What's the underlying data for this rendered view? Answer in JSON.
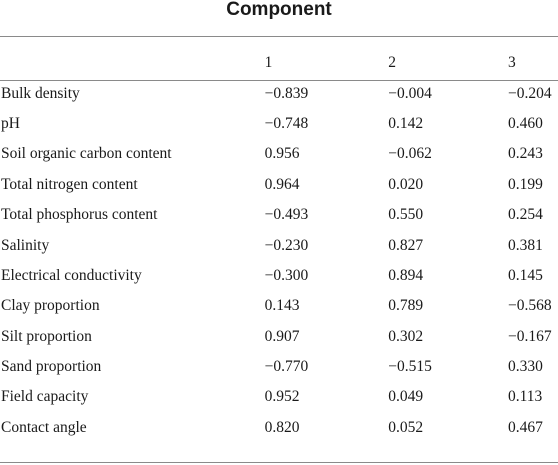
{
  "table": {
    "group_header": "Component",
    "columns": [
      "",
      "1",
      "2",
      "3"
    ],
    "rows": [
      {
        "label": "Bulk density",
        "values": [
          "−0.839",
          "−0.004",
          "−0.204"
        ]
      },
      {
        "label": "pH",
        "values": [
          "−0.748",
          "0.142",
          "0.460"
        ]
      },
      {
        "label": "Soil organic carbon content",
        "values": [
          "0.956",
          "−0.062",
          "0.243"
        ]
      },
      {
        "label": "Total nitrogen content",
        "values": [
          "0.964",
          "0.020",
          "0.199"
        ]
      },
      {
        "label": "Total phosphorus content",
        "values": [
          "−0.493",
          "0.550",
          "0.254"
        ]
      },
      {
        "label": "Salinity",
        "values": [
          "−0.230",
          "0.827",
          "0.381"
        ]
      },
      {
        "label": "Electrical conductivity",
        "values": [
          "−0.300",
          "0.894",
          "0.145"
        ]
      },
      {
        "label": "Clay proportion",
        "values": [
          "0.143",
          "0.789",
          "−0.568"
        ]
      },
      {
        "label": "Silt proportion",
        "values": [
          "0.907",
          "0.302",
          "−0.167"
        ]
      },
      {
        "label": "Sand proportion",
        "values": [
          "−0.770",
          "−0.515",
          "0.330"
        ]
      },
      {
        "label": "Field capacity",
        "values": [
          "0.952",
          "0.049",
          "0.113"
        ]
      },
      {
        "label": "Contact angle",
        "values": [
          "0.820",
          "0.052",
          "0.467"
        ]
      }
    ]
  }
}
